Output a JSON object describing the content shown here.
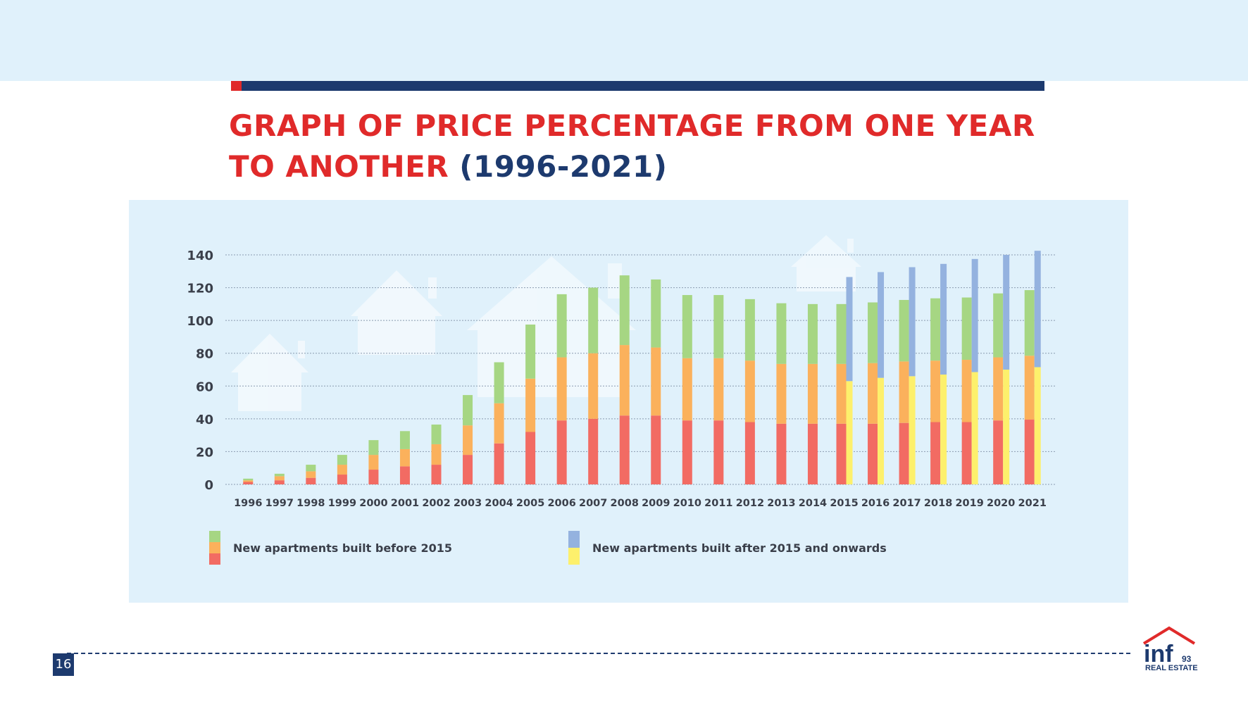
{
  "header": {
    "title_line1": "GRAPH OF PRICE PERCENTAGE FROM ONE YEAR",
    "title_line2": "TO ANOTHER",
    "title_years": "(1996-2021)"
  },
  "footer": {
    "page_number": "16",
    "logo_text": "inf",
    "logo_number": "93",
    "logo_subtitle": "REAL ESTATE"
  },
  "colors": {
    "red_stack": "#f26b63",
    "orange_stack": "#fbb15c",
    "green_stack": "#a6d683",
    "blue_stack": "#94b2df",
    "yellow_stack": "#fdf06c",
    "title_red": "#e02a2a",
    "navy": "#1d3a6e",
    "panel_bg": "#e0f1fb"
  },
  "chart_data": {
    "type": "bar",
    "stacked": true,
    "categories": [
      "1996",
      "1997",
      "1998",
      "1999",
      "2000",
      "2001",
      "2002",
      "2003",
      "2004",
      "2005",
      "2006",
      "2007",
      "2008",
      "2009",
      "2010",
      "2011",
      "2012",
      "2013",
      "2014",
      "2015",
      "2016",
      "2017",
      "2018",
      "2019",
      "2020",
      "2021"
    ],
    "ylim": [
      0,
      140
    ],
    "yticks": [
      0,
      20,
      40,
      60,
      80,
      100,
      120,
      140
    ],
    "grid": true,
    "legend_position": "bottom",
    "groups": [
      {
        "label": "New apartments built before 2015",
        "series": [
          {
            "color": "#f26b63",
            "values": [
              1.5,
              2.5,
              4,
              6,
              9,
              11,
              12,
              18,
              25,
              32,
              39,
              40,
              42,
              42,
              39,
              39,
              38,
              37,
              37,
              37,
              37,
              37.5,
              38,
              38,
              39,
              39.5
            ]
          },
          {
            "color": "#fbb15c",
            "values": [
              1,
              2.5,
              4,
              6,
              9,
              10.5,
              12.5,
              18,
              24.5,
              32.5,
              38.5,
              40,
              43,
              41.5,
              38,
              38,
              37.5,
              36.5,
              36.5,
              36.5,
              37,
              37.5,
              37.5,
              38,
              38.5,
              39
            ]
          },
          {
            "color": "#a6d683",
            "values": [
              1,
              1.5,
              4,
              6,
              9,
              11,
              12,
              18.5,
              25,
              33,
              38.5,
              40,
              42.5,
              41.5,
              38.5,
              38.5,
              37.5,
              37,
              36.5,
              36.5,
              37,
              37.5,
              38,
              38,
              39,
              40
            ]
          }
        ]
      },
      {
        "label": "New apartments built after 2015 and onwards",
        "series": [
          {
            "color": "#fdf06c",
            "values": [
              null,
              null,
              null,
              null,
              null,
              null,
              null,
              null,
              null,
              null,
              null,
              null,
              null,
              null,
              null,
              null,
              null,
              null,
              null,
              63,
              65,
              66,
              67,
              68.5,
              70,
              71.5
            ]
          },
          {
            "color": "#94b2df",
            "values": [
              null,
              null,
              null,
              null,
              null,
              null,
              null,
              null,
              null,
              null,
              null,
              null,
              null,
              null,
              null,
              null,
              null,
              null,
              null,
              63.5,
              64.5,
              66.5,
              67.5,
              69,
              70,
              71
            ]
          }
        ]
      }
    ]
  }
}
